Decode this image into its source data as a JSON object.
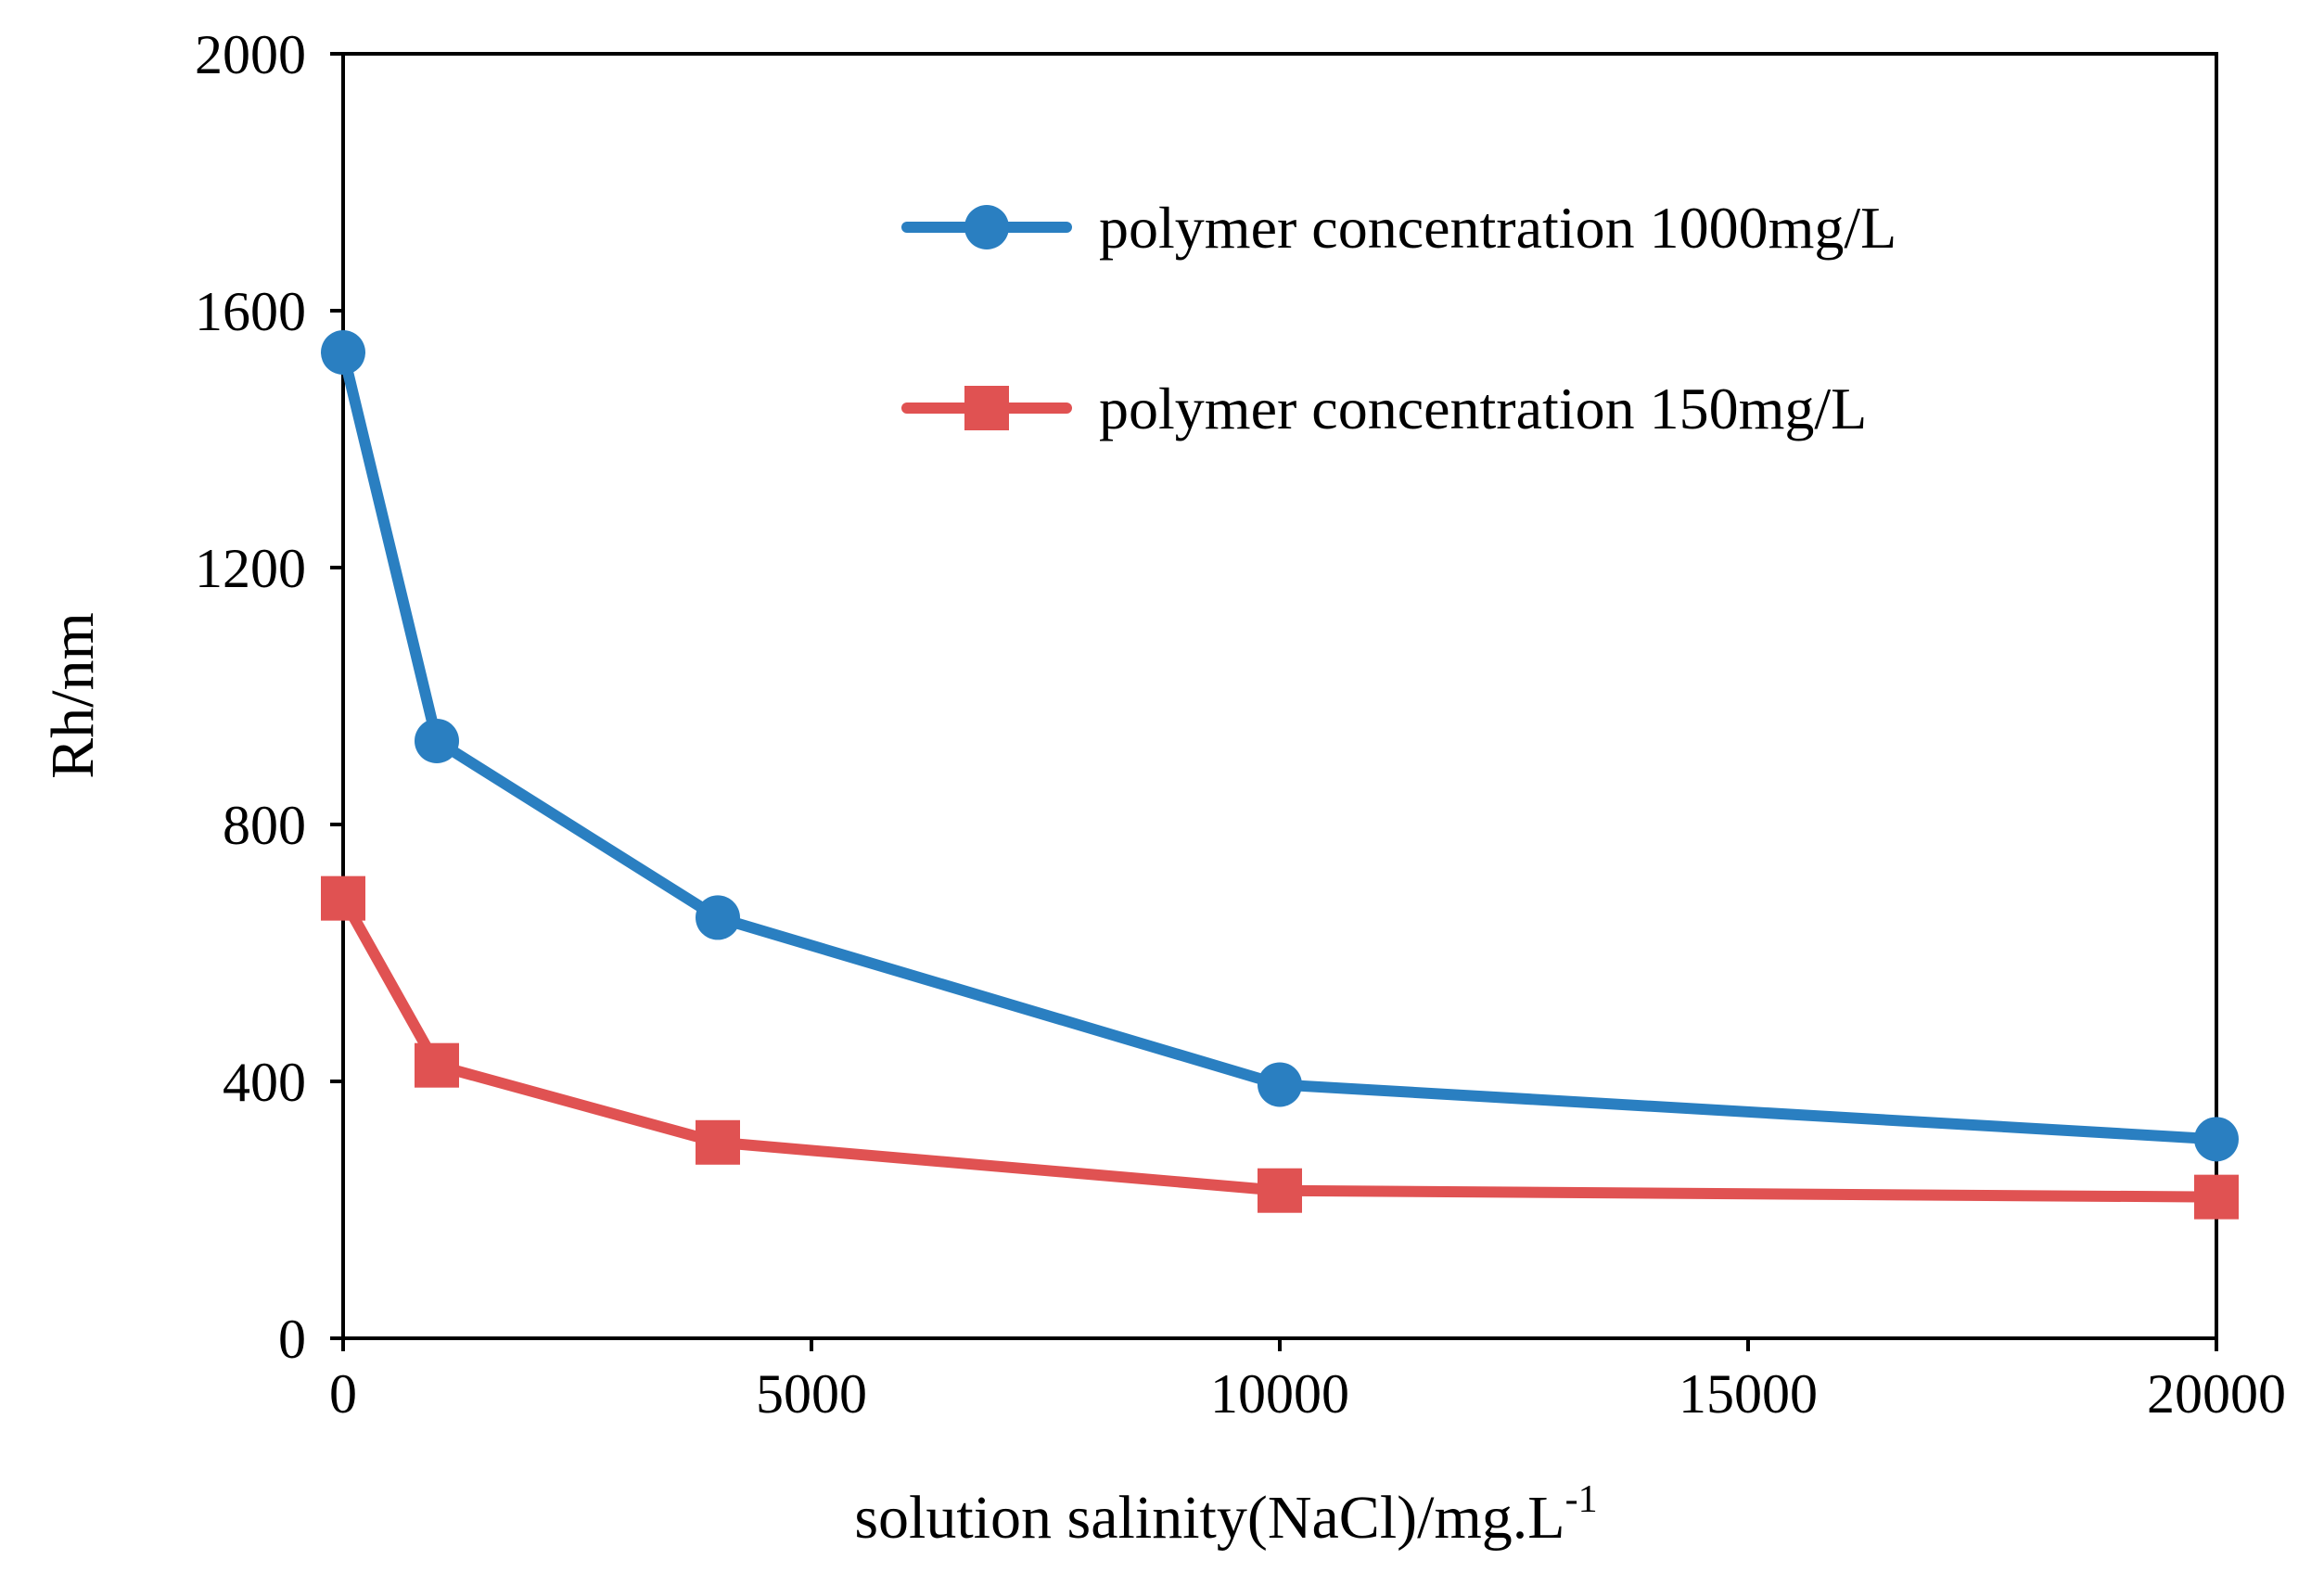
{
  "chart_data": {
    "type": "line",
    "title": "",
    "xlabel": "solution  salinity(NaCl)/mg.L",
    "xlabel_sup": "-1",
    "ylabel": "Rh/nm",
    "xlim": [
      0,
      20000
    ],
    "ylim": [
      0,
      2000
    ],
    "xticks": [
      0,
      5000,
      10000,
      15000,
      20000
    ],
    "yticks": [
      0,
      400,
      800,
      1200,
      1600,
      2000
    ],
    "xtick_labels": [
      "0",
      "5000",
      "10000",
      "15000",
      "20000"
    ],
    "ytick_labels": [
      "0",
      "400",
      "800",
      "1200",
      "1600",
      "2000"
    ],
    "grid": false,
    "legend_position": "top-right",
    "series": [
      {
        "name": "polymer concentration 1000mg/L",
        "color": "#2a7fc1",
        "marker": "circle",
        "x": [
          0,
          1000,
          4000,
          10000,
          20000
        ],
        "y": [
          1535,
          930,
          655,
          395,
          310
        ]
      },
      {
        "name": "polymer concentration 150mg/L",
        "color": "#e05252",
        "marker": "square",
        "x": [
          0,
          1000,
          4000,
          10000,
          20000
        ],
        "y": [
          685,
          425,
          305,
          230,
          220
        ]
      }
    ]
  }
}
